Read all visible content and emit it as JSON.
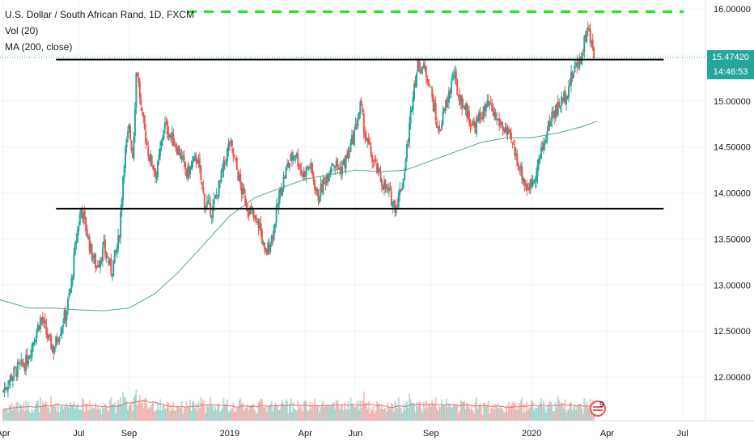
{
  "legend": {
    "title": "U.S. Dollar / South African Rand, 1D, FXCM",
    "volume": "Vol (20)",
    "ma": "MA (200, close)"
  },
  "price_label": {
    "value": "15.47420",
    "countdown": "14:46:53",
    "bg": "#26a69a",
    "countdown_bg": "#26a69a"
  },
  "indicator_badge_count": "9",
  "chart_data": {
    "type": "candlestick",
    "title": "U.S. Dollar / South African Rand, 1D, FXCM",
    "ylim": [
      11.55,
      16.1
    ],
    "y_ticks": [
      "16.00000",
      "15.50000",
      "15.00000",
      "14.50000",
      "14.00000",
      "13.50000",
      "13.00000",
      "12.50000",
      "12.00000"
    ],
    "y_tick_values": [
      16.0,
      15.5,
      15.0,
      14.5,
      14.0,
      13.5,
      13.0,
      12.5,
      12.0
    ],
    "x_ticks": [
      "Apr",
      "Jul",
      "Sep",
      "2019",
      "Apr",
      "Jun",
      "Sep",
      "2020",
      "Apr",
      "Jul"
    ],
    "x_tick_months": [
      0,
      3,
      5,
      9,
      12,
      14,
      17,
      21,
      24,
      27
    ],
    "month_zero": "2018-04",
    "last_bar_month": 23.5,
    "colors": {
      "up": "#26a69a",
      "down": "#ef5350",
      "ma": "#4aa78f",
      "vol_ma": "#e57368",
      "support": "#000000",
      "target": "#19e619",
      "last_price_line": "#26a69a"
    },
    "close_path": [
      [
        0,
        11.85
      ],
      [
        0.3,
        12.0
      ],
      [
        0.6,
        12.1
      ],
      [
        0.9,
        12.15
      ],
      [
        1.2,
        12.4
      ],
      [
        1.5,
        12.65
      ],
      [
        1.8,
        12.4
      ],
      [
        2.0,
        12.3
      ],
      [
        2.3,
        12.55
      ],
      [
        2.5,
        12.7
      ],
      [
        2.7,
        13.0
      ],
      [
        2.9,
        13.5
      ],
      [
        3.1,
        13.85
      ],
      [
        3.3,
        13.6
      ],
      [
        3.5,
        13.35
      ],
      [
        3.7,
        13.2
      ],
      [
        4.0,
        13.4
      ],
      [
        4.3,
        13.15
      ],
      [
        4.6,
        13.5
      ],
      [
        4.8,
        14.35
      ],
      [
        5.0,
        14.7
      ],
      [
        5.15,
        14.4
      ],
      [
        5.3,
        15.4
      ],
      [
        5.5,
        14.85
      ],
      [
        5.8,
        14.4
      ],
      [
        6.1,
        14.2
      ],
      [
        6.4,
        14.75
      ],
      [
        6.7,
        14.6
      ],
      [
        7.0,
        14.45
      ],
      [
        7.3,
        14.2
      ],
      [
        7.7,
        14.4
      ],
      [
        8.0,
        13.9
      ],
      [
        8.3,
        13.8
      ],
      [
        8.6,
        14.1
      ],
      [
        9.0,
        14.55
      ],
      [
        9.2,
        14.35
      ],
      [
        9.5,
        14.0
      ],
      [
        9.8,
        13.8
      ],
      [
        10.0,
        13.7
      ],
      [
        10.2,
        13.65
      ],
      [
        10.4,
        13.3
      ],
      [
        10.7,
        13.55
      ],
      [
        11.0,
        14.0
      ],
      [
        11.3,
        14.3
      ],
      [
        11.6,
        14.45
      ],
      [
        11.9,
        14.2
      ],
      [
        12.2,
        14.3
      ],
      [
        12.5,
        13.95
      ],
      [
        12.8,
        14.15
      ],
      [
        13.1,
        14.35
      ],
      [
        13.4,
        14.25
      ],
      [
        13.7,
        14.4
      ],
      [
        14.0,
        14.7
      ],
      [
        14.2,
        14.95
      ],
      [
        14.4,
        14.6
      ],
      [
        14.7,
        14.35
      ],
      [
        15.0,
        14.15
      ],
      [
        15.3,
        14.0
      ],
      [
        15.6,
        13.85
      ],
      [
        15.9,
        14.15
      ],
      [
        16.1,
        14.6
      ],
      [
        16.3,
        15.15
      ],
      [
        16.5,
        15.4
      ],
      [
        16.7,
        15.35
      ],
      [
        16.9,
        15.25
      ],
      [
        17.1,
        14.95
      ],
      [
        17.3,
        14.65
      ],
      [
        17.6,
        14.95
      ],
      [
        17.9,
        15.3
      ],
      [
        18.1,
        15.05
      ],
      [
        18.4,
        14.9
      ],
      [
        18.7,
        14.7
      ],
      [
        19.0,
        14.85
      ],
      [
        19.3,
        14.95
      ],
      [
        19.6,
        14.8
      ],
      [
        19.9,
        14.7
      ],
      [
        20.2,
        14.55
      ],
      [
        20.5,
        14.3
      ],
      [
        20.8,
        14.05
      ],
      [
        21.0,
        14.1
      ],
      [
        21.3,
        14.35
      ],
      [
        21.5,
        14.55
      ],
      [
        21.8,
        14.85
      ],
      [
        22.1,
        14.95
      ],
      [
        22.4,
        15.1
      ],
      [
        22.7,
        15.35
      ],
      [
        23.0,
        15.5
      ],
      [
        23.2,
        15.8
      ],
      [
        23.5,
        15.47
      ]
    ],
    "ma_path": [
      [
        -1,
        12.9
      ],
      [
        0,
        12.83
      ],
      [
        1,
        12.75
      ],
      [
        2,
        12.75
      ],
      [
        3,
        12.73
      ],
      [
        4,
        12.72
      ],
      [
        5,
        12.75
      ],
      [
        6,
        12.9
      ],
      [
        7,
        13.15
      ],
      [
        8,
        13.45
      ],
      [
        9,
        13.75
      ],
      [
        10,
        13.95
      ],
      [
        11,
        14.05
      ],
      [
        12,
        14.15
      ],
      [
        13,
        14.2
      ],
      [
        14,
        14.25
      ],
      [
        15,
        14.23
      ],
      [
        16,
        14.25
      ],
      [
        17,
        14.35
      ],
      [
        18,
        14.45
      ],
      [
        19,
        14.55
      ],
      [
        20,
        14.6
      ],
      [
        21,
        14.6
      ],
      [
        22,
        14.65
      ],
      [
        23,
        14.72
      ],
      [
        23.6,
        14.78
      ]
    ],
    "resistance_level": 15.45,
    "support_level": 13.83,
    "target_level": 15.97,
    "last_price": 15.4742
  }
}
